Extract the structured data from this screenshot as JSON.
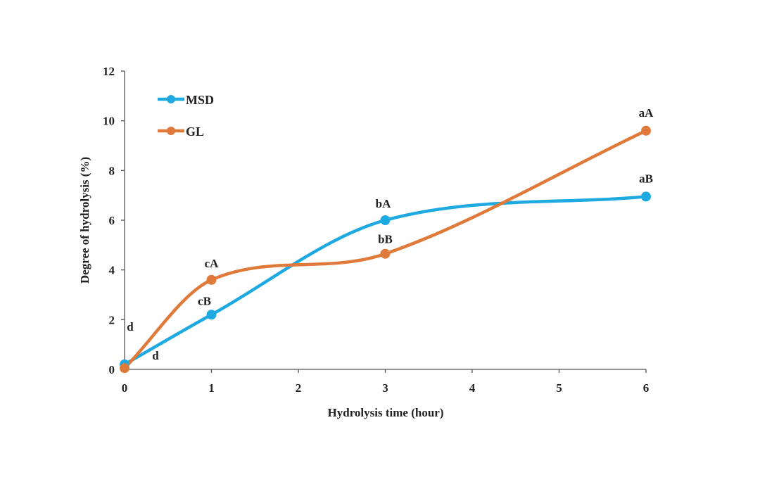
{
  "chart_data": {
    "type": "line",
    "title": "",
    "xlabel": "Hydrolysis time (hour)",
    "ylabel": "Degree of hydrolysis (%)",
    "xlim": [
      0,
      6
    ],
    "ylim": [
      0,
      12
    ],
    "xticks": [
      0,
      1,
      2,
      3,
      4,
      5,
      6
    ],
    "yticks": [
      0,
      2,
      4,
      6,
      8,
      10,
      12
    ],
    "grid": false,
    "legend_position": "top-left",
    "smooth": true,
    "series": [
      {
        "name": "MSD",
        "color": "#1fa9e1",
        "x": [
          0,
          1,
          3,
          6
        ],
        "y": [
          0.2,
          2.2,
          6.0,
          6.95
        ],
        "annotations": [
          "d",
          "cB",
          "bA",
          "aB"
        ]
      },
      {
        "name": "GL",
        "color": "#e07a3a",
        "x": [
          0,
          1,
          3,
          6
        ],
        "y": [
          0.05,
          3.6,
          4.65,
          9.6
        ],
        "annotations": [
          "d",
          "cA",
          "bB",
          "aA"
        ]
      }
    ]
  }
}
